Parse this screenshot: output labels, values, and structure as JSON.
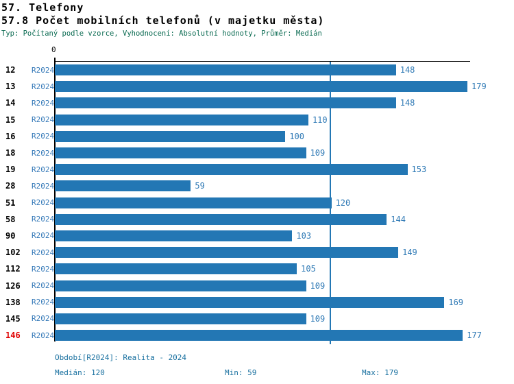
{
  "header": {
    "title_line1": "57. Telefony",
    "title_line2": "57.8 Počet mobilních telefonů (v majetku města)",
    "meta": "Typ: Počítaný podle vzorce, Vyhodnocení: Absolutní hodnoty, Průměr: Medián"
  },
  "chart_data": {
    "type": "bar",
    "orientation": "horizontal",
    "title": "57.8 Počet mobilních telefonů (v majetku města)",
    "series_label": "R2024",
    "categories": [
      "12",
      "13",
      "14",
      "15",
      "16",
      "18",
      "19",
      "28",
      "51",
      "58",
      "90",
      "102",
      "112",
      "126",
      "138",
      "145",
      "146"
    ],
    "values": [
      148,
      179,
      148,
      110,
      100,
      109,
      153,
      59,
      120,
      144,
      103,
      149,
      105,
      109,
      169,
      109,
      177
    ],
    "highlighted_category": "146",
    "axis_origin_label": "0",
    "xlim": [
      0,
      180
    ],
    "median_reference_line": 120,
    "grid": "single vertical median line",
    "legend_position": "none",
    "bar_color": "#2377b4",
    "median_line_color": "#2377b4",
    "highlight_color": "#e00000",
    "statistics": {
      "median": 120,
      "min": 59,
      "max": 179
    }
  },
  "footer": {
    "period": "Období[R2024]: Realita - 2024",
    "median": "Medián: 120",
    "min": "Min: 59",
    "max": "Max: 179"
  }
}
